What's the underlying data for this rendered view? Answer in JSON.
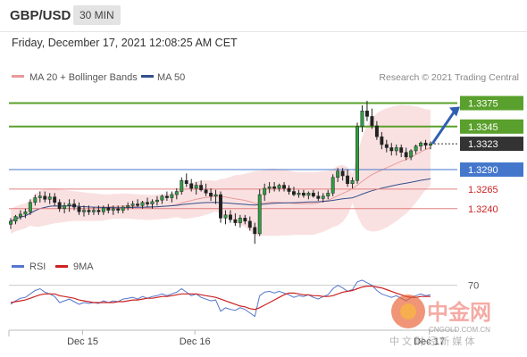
{
  "header": {
    "symbol": "GBP/USD",
    "timeframe": "30 MIN",
    "datetime": "Friday, December 17, 2021 12:08:25 AM CET"
  },
  "legend": {
    "ma20": "MA 20 + Bollinger Bands",
    "ma50": "MA 50",
    "ma20_color": "#e89a9a",
    "ma50_color": "#33508c",
    "credit": "Research © 2021 Trading Central"
  },
  "rsi_legend": {
    "rsi": "RSI",
    "ma": "9MA",
    "rsi_color": "#5577cc",
    "ma_color": "#cc2222"
  },
  "watermark": {
    "brand": "中金网",
    "domain": "CNGOLD.COM.CN",
    "tagline": "中 文 财 经 新 媒 体"
  },
  "chart_data": [
    {
      "type": "candlestick",
      "ylim": [
        1.3185,
        1.3395
      ],
      "price_levels": [
        {
          "label": "1.3375",
          "value": 1.3375,
          "kind": "resistance",
          "color": "#5aa02c"
        },
        {
          "label": "1.3345",
          "value": 1.3345,
          "kind": "resistance",
          "color": "#5aa02c"
        },
        {
          "label": "1.3323",
          "value": 1.3323,
          "kind": "last",
          "color": "#333333"
        },
        {
          "label": "1.3290",
          "value": 1.329,
          "kind": "pivot",
          "color": "#4477cc"
        },
        {
          "label": "1.3265",
          "value": 1.3265,
          "kind": "support",
          "color": "#e08080"
        },
        {
          "label": "1.3240",
          "value": 1.324,
          "kind": "support",
          "color": "#e08080"
        }
      ],
      "x_ticks": [
        "Dec 15",
        "Dec 16",
        "Dec 17"
      ],
      "candles": [
        [
          1.322,
          1.3228,
          1.3214,
          1.3224
        ],
        [
          1.3224,
          1.3232,
          1.322,
          1.323
        ],
        [
          1.323,
          1.3238,
          1.3226,
          1.3233
        ],
        [
          1.3233,
          1.324,
          1.3228,
          1.3236
        ],
        [
          1.3236,
          1.3252,
          1.3232,
          1.3248
        ],
        [
          1.3248,
          1.3258,
          1.3244,
          1.3254
        ],
        [
          1.3254,
          1.3262,
          1.3248,
          1.3256
        ],
        [
          1.3256,
          1.3262,
          1.3248,
          1.3252
        ],
        [
          1.3252,
          1.326,
          1.3246,
          1.3255
        ],
        [
          1.3255,
          1.326,
          1.3244,
          1.3248
        ],
        [
          1.3248,
          1.3252,
          1.3236,
          1.324
        ],
        [
          1.324,
          1.3248,
          1.3234,
          1.3244
        ],
        [
          1.3244,
          1.3252,
          1.3236,
          1.3246
        ],
        [
          1.3246,
          1.3252,
          1.3238,
          1.3242
        ],
        [
          1.3242,
          1.3248,
          1.3232,
          1.3236
        ],
        [
          1.3236,
          1.3244,
          1.323,
          1.3238
        ],
        [
          1.3238,
          1.3244,
          1.3232,
          1.3236
        ],
        [
          1.3236,
          1.3242,
          1.3232,
          1.3238
        ],
        [
          1.3238,
          1.3244,
          1.3232,
          1.3236
        ],
        [
          1.3236,
          1.3244,
          1.3232,
          1.3241
        ],
        [
          1.3241,
          1.3246,
          1.3234,
          1.3238
        ],
        [
          1.3238,
          1.3244,
          1.3232,
          1.324
        ],
        [
          1.324,
          1.3244,
          1.3234,
          1.3238
        ],
        [
          1.3238,
          1.3244,
          1.3234,
          1.3242
        ],
        [
          1.3242,
          1.3248,
          1.3238,
          1.3244
        ],
        [
          1.3244,
          1.325,
          1.324,
          1.3246
        ],
        [
          1.3246,
          1.3252,
          1.3242,
          1.3244
        ],
        [
          1.3244,
          1.325,
          1.324,
          1.3248
        ],
        [
          1.3248,
          1.3254,
          1.3242,
          1.3246
        ],
        [
          1.3246,
          1.3252,
          1.324,
          1.3249
        ],
        [
          1.3249,
          1.3256,
          1.3244,
          1.3251
        ],
        [
          1.3251,
          1.3258,
          1.3246,
          1.3256
        ],
        [
          1.3256,
          1.3262,
          1.325,
          1.3254
        ],
        [
          1.3254,
          1.3262,
          1.3248,
          1.3258
        ],
        [
          1.3258,
          1.3266,
          1.3252,
          1.3262
        ],
        [
          1.3262,
          1.328,
          1.3258,
          1.3276
        ],
        [
          1.3276,
          1.3285,
          1.3268,
          1.3272
        ],
        [
          1.3272,
          1.3278,
          1.3262,
          1.3266
        ],
        [
          1.3266,
          1.3274,
          1.3258,
          1.327
        ],
        [
          1.327,
          1.3276,
          1.3262,
          1.3264
        ],
        [
          1.3264,
          1.3272,
          1.3256,
          1.326
        ],
        [
          1.326,
          1.3266,
          1.325,
          1.3256
        ],
        [
          1.3256,
          1.3264,
          1.3246,
          1.3258
        ],
        [
          1.3258,
          1.3262,
          1.3222,
          1.3228
        ],
        [
          1.3228,
          1.3238,
          1.322,
          1.3232
        ],
        [
          1.3232,
          1.3238,
          1.3222,
          1.3226
        ],
        [
          1.3226,
          1.3234,
          1.3218,
          1.3222
        ],
        [
          1.3222,
          1.3232,
          1.3216,
          1.3228
        ],
        [
          1.3228,
          1.3232,
          1.322,
          1.3224
        ],
        [
          1.3224,
          1.323,
          1.3212,
          1.3216
        ],
        [
          1.3216,
          1.3222,
          1.3195,
          1.3208
        ],
        [
          1.3208,
          1.3265,
          1.3205,
          1.3258
        ],
        [
          1.3258,
          1.3272,
          1.325,
          1.3266
        ],
        [
          1.3266,
          1.3274,
          1.326,
          1.3268
        ],
        [
          1.3268,
          1.3274,
          1.3262,
          1.3266
        ],
        [
          1.3266,
          1.3272,
          1.3262,
          1.327
        ],
        [
          1.327,
          1.3274,
          1.3262,
          1.3266
        ],
        [
          1.3266,
          1.327,
          1.3258,
          1.3262
        ],
        [
          1.3262,
          1.3268,
          1.3256,
          1.3258
        ],
        [
          1.3258,
          1.3264,
          1.3254,
          1.326
        ],
        [
          1.326,
          1.3264,
          1.3254,
          1.3257
        ],
        [
          1.3257,
          1.3262,
          1.3252,
          1.326
        ],
        [
          1.326,
          1.3264,
          1.3254,
          1.3256
        ],
        [
          1.3256,
          1.3262,
          1.325,
          1.3253
        ],
        [
          1.3253,
          1.326,
          1.3248,
          1.3256
        ],
        [
          1.3256,
          1.3264,
          1.3252,
          1.326
        ],
        [
          1.326,
          1.3284,
          1.3256,
          1.328
        ],
        [
          1.328,
          1.3292,
          1.3274,
          1.3288
        ],
        [
          1.3288,
          1.3292,
          1.3276,
          1.3282
        ],
        [
          1.3282,
          1.329,
          1.3268,
          1.3272
        ],
        [
          1.3272,
          1.328,
          1.3266,
          1.3276
        ],
        [
          1.3276,
          1.335,
          1.3272,
          1.3345
        ],
        [
          1.3345,
          1.3372,
          1.3338,
          1.3365
        ],
        [
          1.3365,
          1.3378,
          1.3352,
          1.3358
        ],
        [
          1.3358,
          1.3368,
          1.3342,
          1.3346
        ],
        [
          1.3346,
          1.3352,
          1.3328,
          1.3332
        ],
        [
          1.3332,
          1.3338,
          1.3316,
          1.3322
        ],
        [
          1.3322,
          1.3328,
          1.3312,
          1.3318
        ],
        [
          1.3318,
          1.3324,
          1.3308,
          1.3314
        ],
        [
          1.3314,
          1.3322,
          1.3308,
          1.3318
        ],
        [
          1.3318,
          1.3322,
          1.3306,
          1.3312
        ],
        [
          1.3312,
          1.3318,
          1.3302,
          1.3306
        ],
        [
          1.3306,
          1.3316,
          1.3302,
          1.3314
        ],
        [
          1.3314,
          1.3322,
          1.331,
          1.332
        ],
        [
          1.332,
          1.3326,
          1.3314,
          1.3324
        ],
        [
          1.3324,
          1.3328,
          1.3316,
          1.3321
        ],
        [
          1.3321,
          1.3326,
          1.3316,
          1.3323
        ]
      ],
      "arrow": {
        "from_value": 1.3323,
        "to_value": 1.3375
      }
    },
    {
      "type": "line",
      "title": "RSI",
      "ylim": [
        20,
        80
      ],
      "yticks": [
        "70"
      ],
      "series": [
        {
          "name": "RSI",
          "values": [
            48,
            52,
            55,
            56,
            60,
            64,
            66,
            62,
            60,
            57,
            50,
            52,
            54,
            51,
            48,
            50,
            49,
            50,
            49,
            52,
            50,
            52,
            51,
            54,
            55,
            56,
            54,
            57,
            55,
            57,
            58,
            60,
            58,
            60,
            62,
            66,
            62,
            58,
            60,
            56,
            54,
            52,
            53,
            40,
            44,
            42,
            41,
            44,
            42,
            38,
            34,
            58,
            62,
            63,
            61,
            63,
            61,
            59,
            56,
            58,
            57,
            59,
            56,
            54,
            57,
            59,
            66,
            70,
            67,
            63,
            65,
            74,
            76,
            73,
            70,
            64,
            60,
            58,
            56,
            58,
            55,
            52,
            56,
            58,
            60,
            58,
            59
          ]
        },
        {
          "name": "9MA",
          "values": [
            50,
            51,
            52,
            53,
            55,
            57,
            59,
            60,
            60,
            60,
            58,
            57,
            56,
            55,
            53,
            52,
            51,
            50,
            50,
            50,
            50,
            50,
            51,
            51,
            52,
            53,
            53,
            54,
            55,
            55,
            56,
            57,
            57,
            58,
            59,
            60,
            60,
            60,
            60,
            59,
            58,
            57,
            56,
            54,
            52,
            50,
            48,
            46,
            45,
            43,
            42,
            44,
            47,
            50,
            53,
            56,
            59,
            61,
            61,
            60,
            59,
            59,
            58,
            58,
            57,
            57,
            58,
            60,
            62,
            63,
            64,
            66,
            68,
            69,
            69,
            68,
            67,
            65,
            63,
            61,
            59,
            57,
            56,
            56,
            57,
            57,
            57
          ]
        }
      ]
    }
  ]
}
